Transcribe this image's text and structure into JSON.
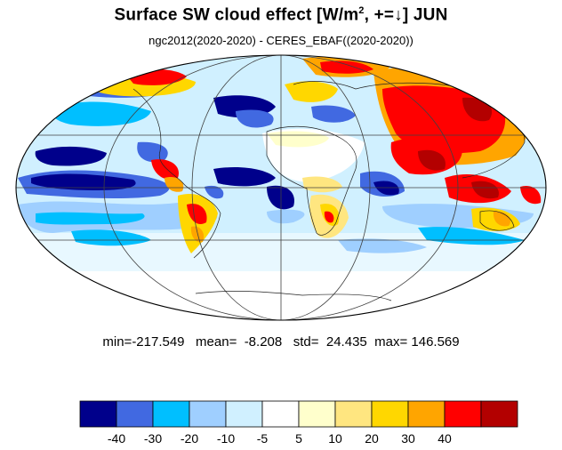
{
  "title": {
    "main": "Surface SW cloud effect [W/m",
    "sup": "2",
    "rest": ", +=↓]  JUN"
  },
  "subtitle": "ngc2012(2020-2020) - CERES_EBAF((2020-2020))",
  "stats": {
    "min_label": "min=",
    "min": "-217.549",
    "mean_label": "mean=",
    "mean": "-8.208",
    "std_label": "std=",
    "std": "24.435",
    "max_label": "max=",
    "max": "146.569"
  },
  "map": {
    "projection": "Mollweide",
    "variable": "Surface SW cloud effect difference",
    "grid_lines": true
  },
  "colorbar": {
    "colors": [
      "#00008b",
      "#4169e1",
      "#00bfff",
      "#9fcfff",
      "#d0f0ff",
      "#ffffff",
      "#ffffcc",
      "#ffe680",
      "#ffd700",
      "#ffa500",
      "#ff0000",
      "#b30000"
    ],
    "tick_labels": [
      "-40",
      "-30",
      "-20",
      "-10",
      "-5",
      "5",
      "10",
      "20",
      "30",
      "40"
    ],
    "tick_values": [
      -40,
      -30,
      -20,
      -10,
      -5,
      5,
      10,
      20,
      30,
      40
    ]
  }
}
